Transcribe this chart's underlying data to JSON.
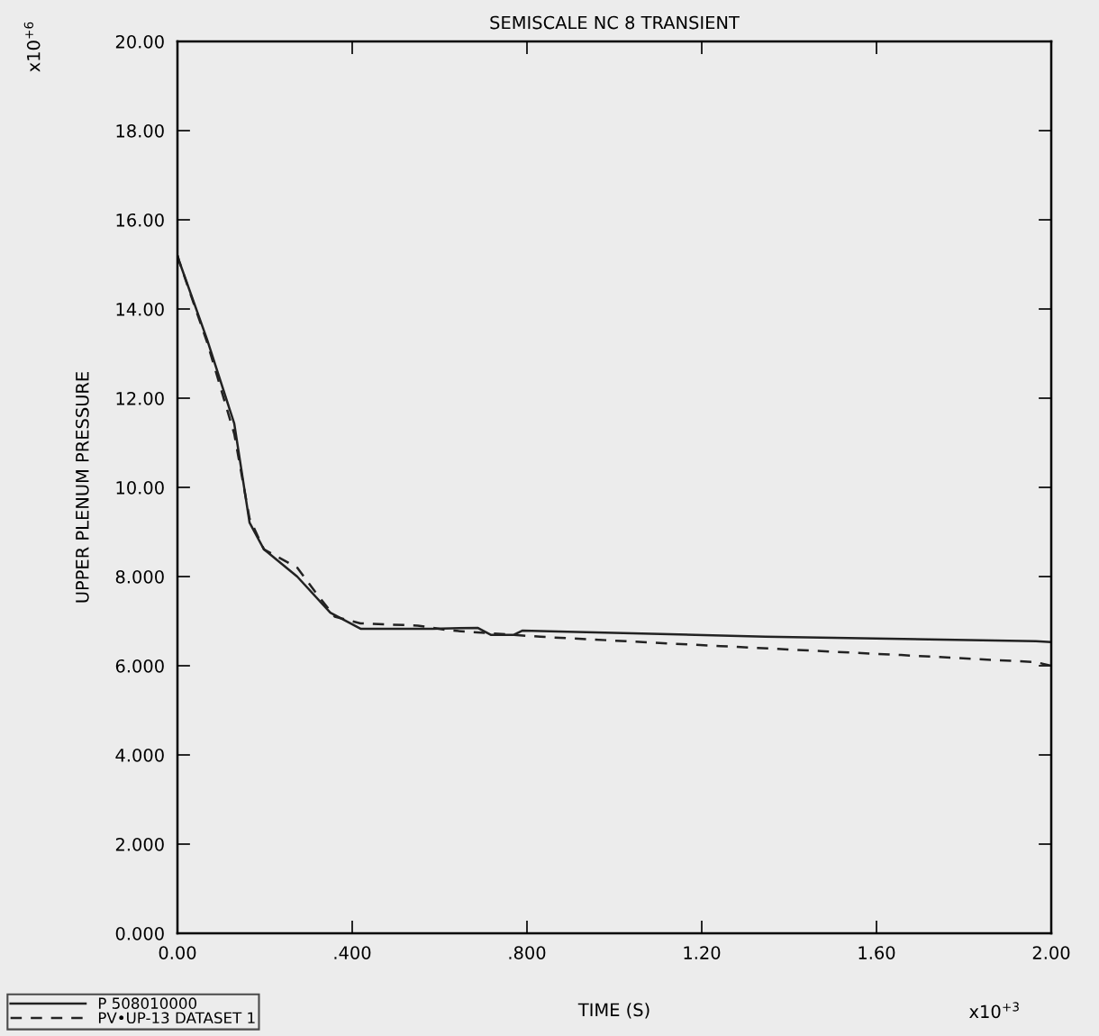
{
  "chart_data": {
    "type": "line",
    "title": "SEMISCALE NC 8 TRANSIENT",
    "xlabel": "TIME (S)",
    "ylabel": "UPPER PLENUM PRESSURE",
    "annotations": [
      "x10$^{+6}$",
      "x10$^{+3}$"
    ],
    "xlim": [
      0,
      2.0
    ],
    "ylim": [
      0,
      20
    ],
    "xticks": [
      {
        "value": 0,
        "label": "0.00"
      },
      {
        "value": 0.4,
        "label": ".400"
      },
      {
        "value": 0.8,
        "label": ".800"
      },
      {
        "value": 1.2,
        "label": "1.20"
      },
      {
        "value": 1.6,
        "label": "1.60"
      },
      {
        "value": 2.0,
        "label": "2.00"
      }
    ],
    "yticks": [
      {
        "value": 0,
        "label": "0.000"
      },
      {
        "value": 2,
        "label": "2.000"
      },
      {
        "value": 4,
        "label": "4.000"
      },
      {
        "value": 6,
        "label": "6.000"
      },
      {
        "value": 8,
        "label": "8.000"
      },
      {
        "value": 10,
        "label": "10.00"
      },
      {
        "value": 12,
        "label": "12.00"
      },
      {
        "value": 14,
        "label": "14.00"
      },
      {
        "value": 16,
        "label": "16.00"
      },
      {
        "value": 18,
        "label": "18.00"
      },
      {
        "value": 20,
        "label": "20.00"
      }
    ],
    "grid": false,
    "legend": "bottom left",
    "marker": "none",
    "series": [
      {
        "name": "P 508010000",
        "color": "#222222",
        "line_style": "solid",
        "x": [
          0,
          0.004,
          0.068,
          0.13,
          0.165,
          0.198,
          0.274,
          0.35,
          0.419,
          0.584,
          0.687,
          0.718,
          0.769,
          0.79,
          0.872,
          1.346,
          1.965,
          2.0
        ],
        "values": [
          15.2,
          15.07,
          13.31,
          11.43,
          9.21,
          8.61,
          8.0,
          7.19,
          6.83,
          6.83,
          6.85,
          6.69,
          6.69,
          6.79,
          6.77,
          6.65,
          6.55,
          6.53
        ]
      },
      {
        "name": "PV•UP-13 DATASET 1",
        "color": "#222222",
        "line_style": "dashed",
        "x": [
          0,
          0.004,
          0.068,
          0.13,
          0.165,
          0.198,
          0.274,
          0.315,
          0.36,
          0.419,
          0.55,
          0.625,
          0.831,
          1.243,
          1.656,
          1.965,
          2.0
        ],
        "values": [
          15.2,
          15.07,
          13.25,
          11.2,
          9.3,
          8.61,
          8.2,
          7.66,
          7.1,
          6.95,
          6.9,
          6.79,
          6.65,
          6.44,
          6.24,
          6.08,
          6.0
        ]
      }
    ]
  }
}
